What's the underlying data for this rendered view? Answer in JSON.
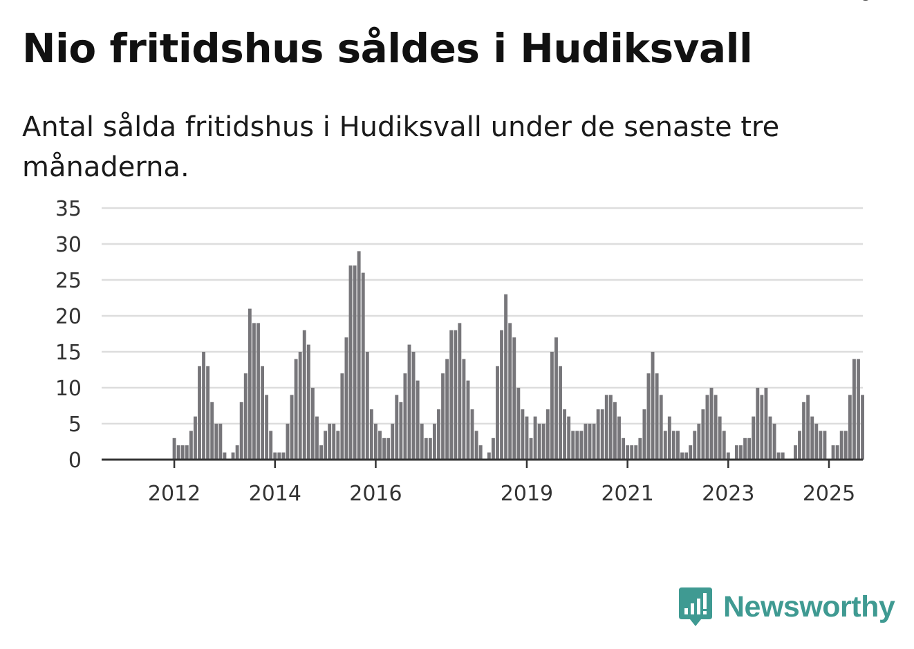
{
  "title": "Nio fritidshus såldes i Hudiksvall",
  "subtitle": "Antal sålda fritidshus i Hudiksvall under de senaste tre månaderna.",
  "brand": {
    "name": "Newsworthy",
    "color": "#3f9a92",
    "icon": "newsworthy-logo-icon"
  },
  "colors": {
    "bar": "#77767a",
    "highlight": "#1f9e93",
    "grid": "#dddddd",
    "axis": "#333333"
  },
  "chart_data": {
    "type": "bar",
    "title": "Nio fritidshus såldes i Hudiksvall",
    "xlabel": "",
    "ylabel": "",
    "ylim": [
      0,
      35
    ],
    "y_ticks": [
      0,
      5,
      10,
      15,
      20,
      25,
      30,
      35
    ],
    "x_tick_labels": [
      {
        "label": "2012",
        "index": 9
      },
      {
        "label": "2014",
        "index": 33
      },
      {
        "label": "2016",
        "index": 57
      },
      {
        "label": "2019",
        "index": 93
      },
      {
        "label": "2021",
        "index": 117
      },
      {
        "label": "2023",
        "index": 141
      },
      {
        "label": "2025",
        "index": 165
      }
    ],
    "highlight_index": 174,
    "highlight_label": "9",
    "values": [
      0,
      0,
      0,
      0,
      0,
      0,
      0,
      0,
      0,
      3,
      2,
      2,
      2,
      4,
      6,
      13,
      15,
      13,
      8,
      5,
      5,
      1,
      0,
      1,
      2,
      8,
      12,
      21,
      19,
      19,
      13,
      9,
      4,
      1,
      1,
      1,
      5,
      9,
      14,
      15,
      18,
      16,
      10,
      6,
      2,
      4,
      5,
      5,
      4,
      12,
      17,
      27,
      27,
      29,
      26,
      15,
      7,
      5,
      4,
      3,
      3,
      5,
      9,
      8,
      12,
      16,
      15,
      11,
      5,
      3,
      3,
      5,
      7,
      12,
      14,
      18,
      18,
      19,
      14,
      11,
      7,
      4,
      2,
      0,
      1,
      3,
      13,
      18,
      23,
      19,
      17,
      10,
      7,
      6,
      3,
      6,
      5,
      5,
      7,
      15,
      17,
      13,
      7,
      6,
      4,
      4,
      4,
      5,
      5,
      5,
      7,
      7,
      9,
      9,
      8,
      6,
      3,
      2,
      2,
      2,
      3,
      7,
      12,
      15,
      12,
      9,
      4,
      6,
      4,
      4,
      1,
      1,
      2,
      4,
      5,
      7,
      9,
      10,
      9,
      6,
      4,
      1,
      0,
      2,
      2,
      3,
      3,
      6,
      10,
      9,
      10,
      6,
      5,
      1,
      1,
      0,
      0,
      2,
      4,
      8,
      9,
      6,
      5,
      4,
      4,
      0,
      2,
      2,
      4,
      4,
      9,
      14,
      14,
      9
    ]
  }
}
